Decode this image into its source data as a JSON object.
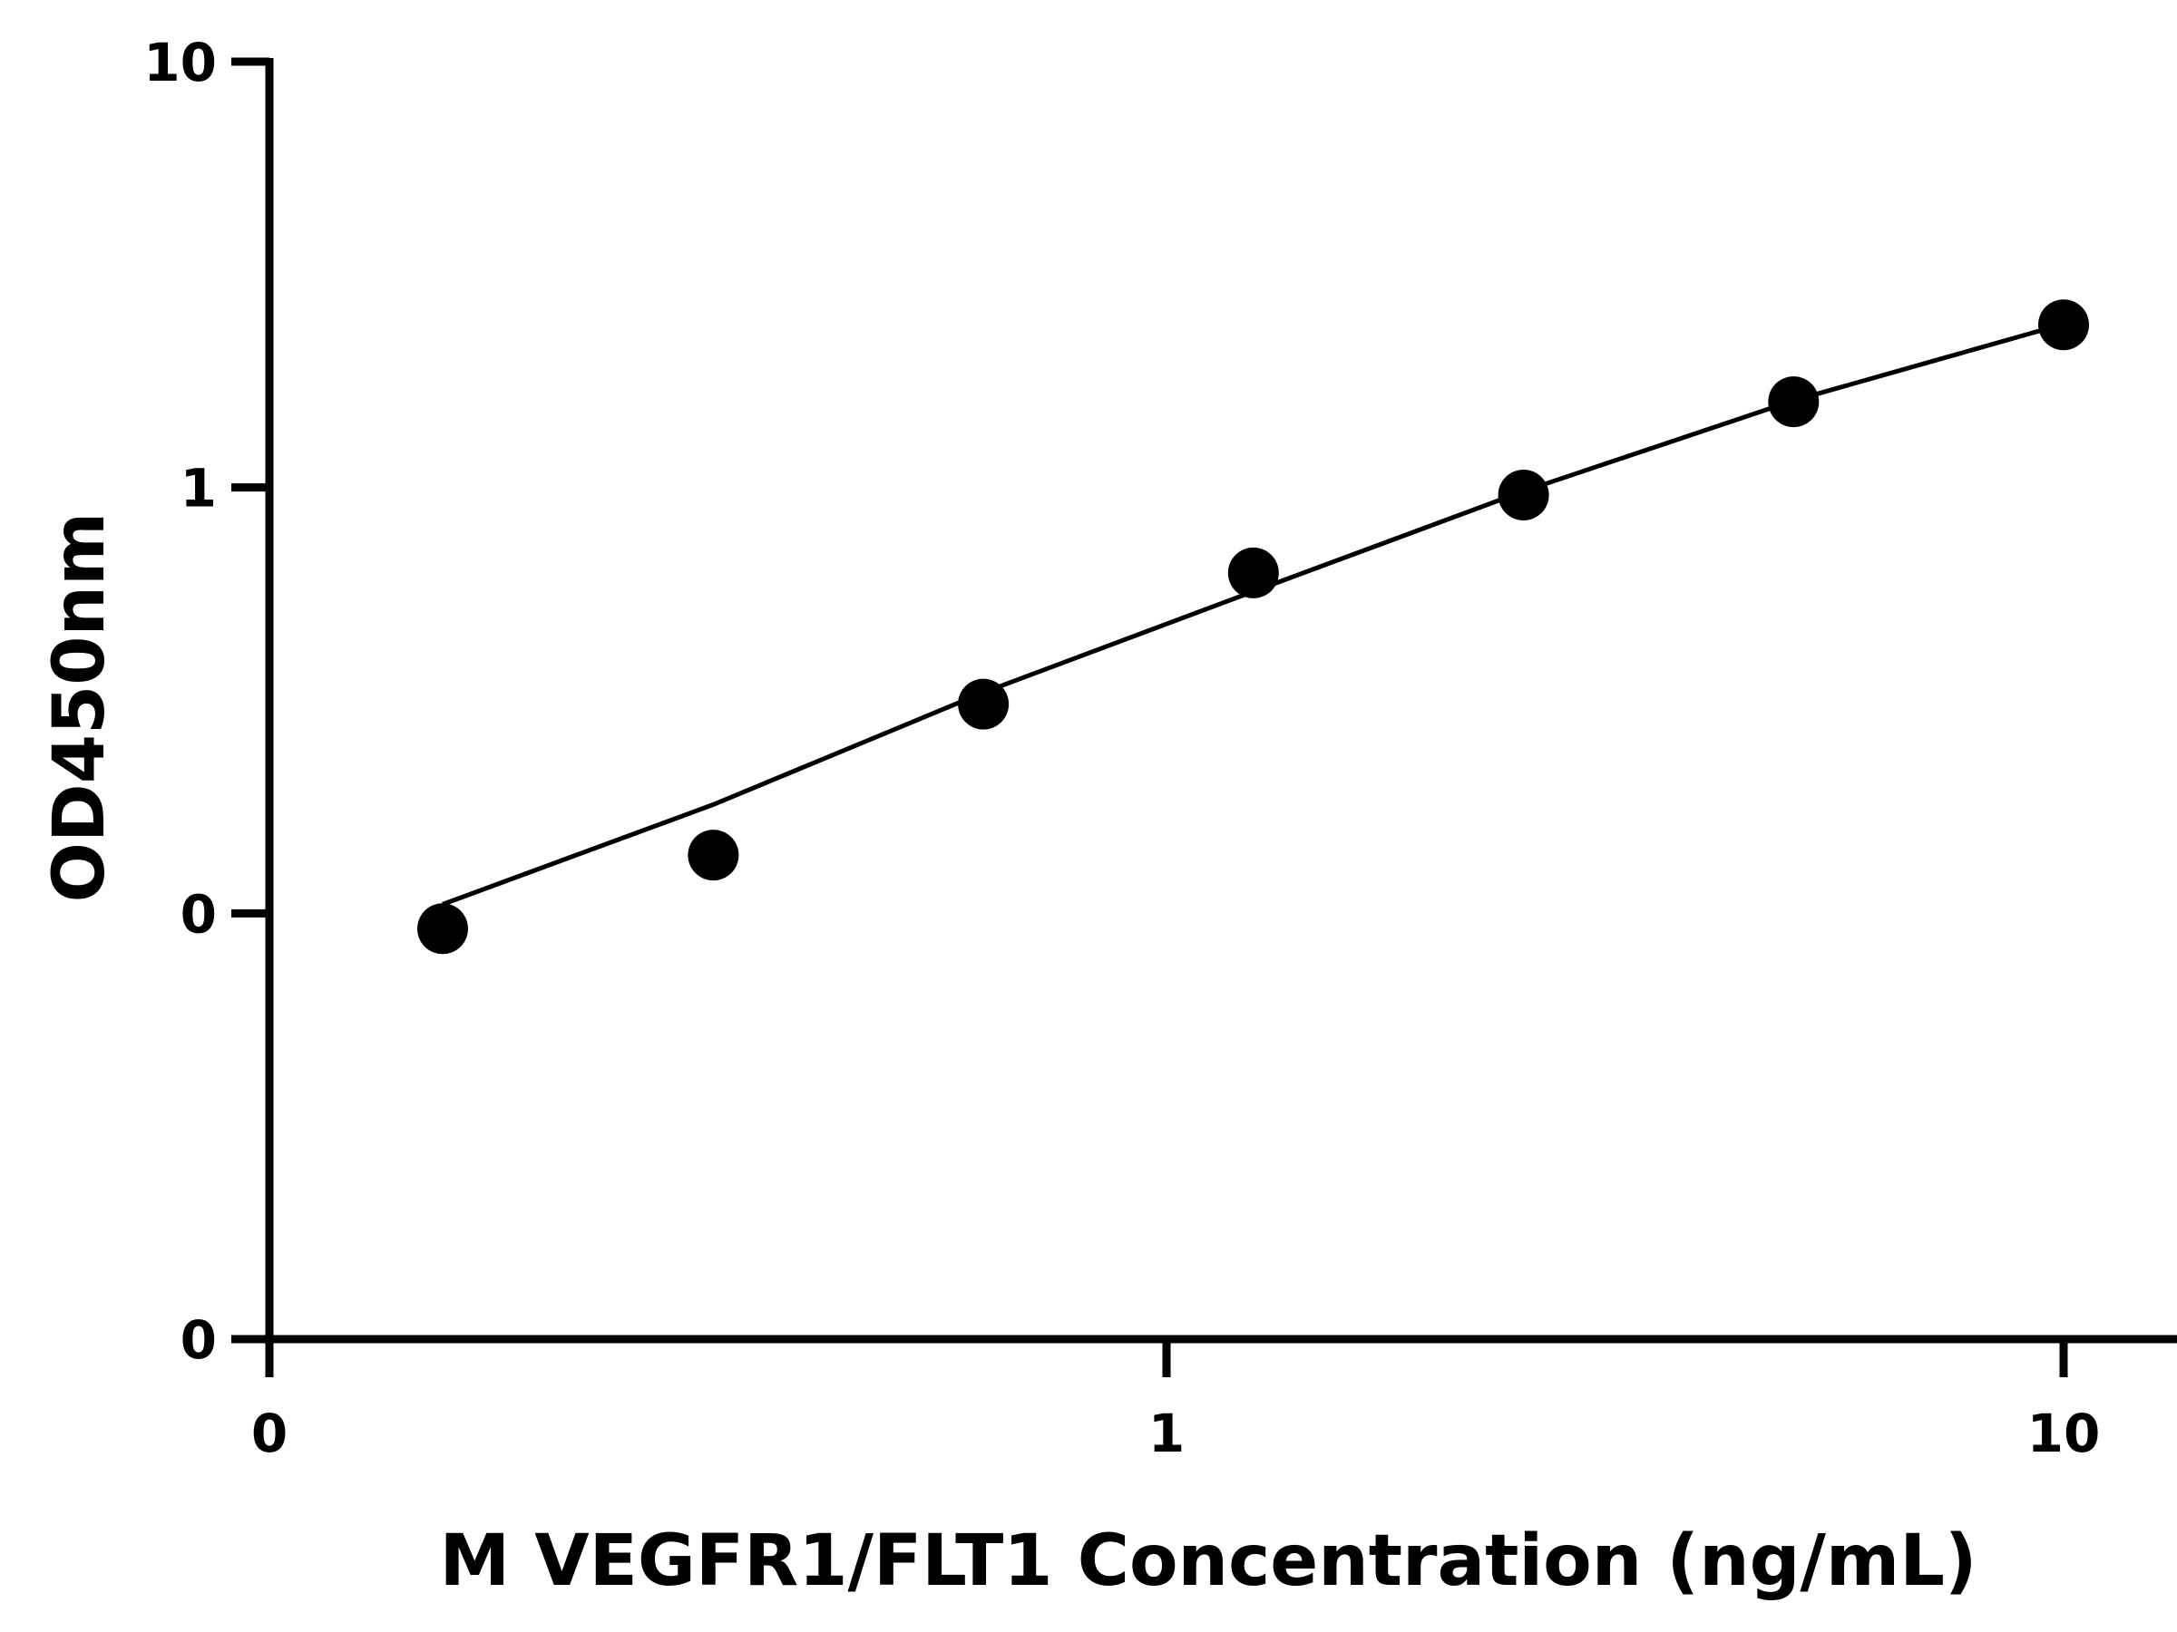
{
  "chart_data": {
    "type": "scatter",
    "title": "",
    "xlabel": "M VEGFR1/FLT1 Concentration (ng/mL)",
    "ylabel": "OD450nm",
    "x_scale": "log",
    "y_scale": "log",
    "x_tick_labels": [
      "0",
      "1",
      "10"
    ],
    "y_tick_labels": [
      "10",
      "1",
      "0",
      "0"
    ],
    "x_tick_values": [
      0.1,
      1,
      10
    ],
    "y_tick_values": [
      10,
      1,
      0.1,
      0.01
    ],
    "xlim": [
      0.1,
      13
    ],
    "ylim": [
      0.01,
      10
    ],
    "grid": false,
    "legend": "none",
    "point_color": "#000000",
    "line_color": "#000000",
    "series": [
      {
        "x": [
          0.156,
          0.3125,
          0.625,
          1.25,
          2.5,
          5,
          10
        ],
        "y": [
          0.092,
          0.137,
          0.31,
          0.63,
          0.96,
          1.59,
          2.41
        ]
      }
    ],
    "fit_line": {
      "x": [
        0.156,
        0.3125,
        0.625,
        1.25,
        2.5,
        5,
        10
      ],
      "y": [
        0.105,
        0.18,
        0.33,
        0.57,
        0.98,
        1.6,
        2.42
      ]
    }
  }
}
